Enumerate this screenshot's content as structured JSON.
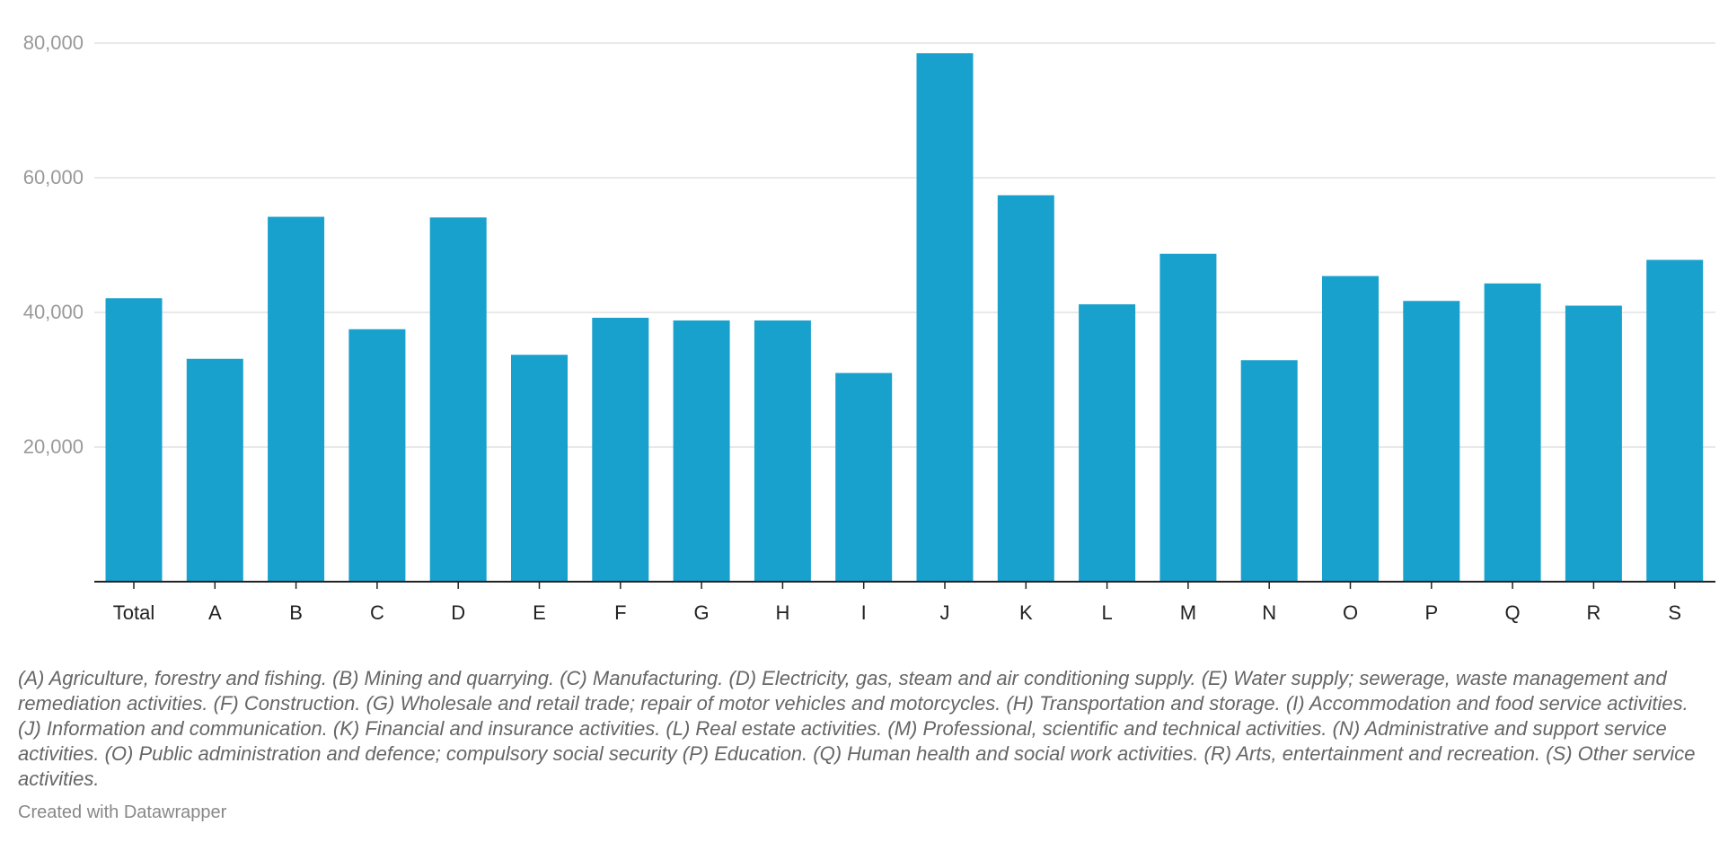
{
  "chart_data": {
    "type": "bar",
    "title": "",
    "xlabel": "",
    "ylabel": "",
    "categories": [
      "Total",
      "A",
      "B",
      "C",
      "D",
      "E",
      "F",
      "G",
      "H",
      "I",
      "J",
      "K",
      "L",
      "M",
      "N",
      "O",
      "P",
      "Q",
      "R",
      "S"
    ],
    "values": [
      42100,
      33100,
      54200,
      37500,
      54100,
      33700,
      39200,
      38800,
      38800,
      31000,
      78500,
      57400,
      41200,
      48700,
      32900,
      45400,
      41700,
      44300,
      41000,
      47800
    ],
    "ylim": [
      0,
      80000
    ],
    "yticks": [
      20000,
      40000,
      60000,
      80000
    ],
    "ytick_labels": [
      "20,000",
      "40,000",
      "60,000",
      "80,000"
    ],
    "grid": true,
    "legend": "none",
    "bar_color": "#18a1cd",
    "grid_color": "#e2e2e2",
    "axis_color": "#222222"
  },
  "footnote": "(A) Agriculture, forestry and fishing. (B) Mining and quarrying. (C) Manufacturing. (D) Electricity, gas, steam and air conditioning supply. (E) Water supply; sewerage, waste management and remediation activities. (F) Construction. (G) Wholesale and retail trade; repair of motor vehicles and motorcycles. (H) Transportation and storage. (I) Accommodation and food service activities. (J) Information and communication. (K) Financial and insurance activities. (L) Real estate activities. (M) Professional, scientific and technical activities. (N) Administrative and support service activities. (O) Public administration and defence; compulsory social security (P) Education. (Q) Human health and social work activities. (R) Arts, entertainment and recreation. (S) Other service activities.",
  "credit": "Created with Datawrapper"
}
